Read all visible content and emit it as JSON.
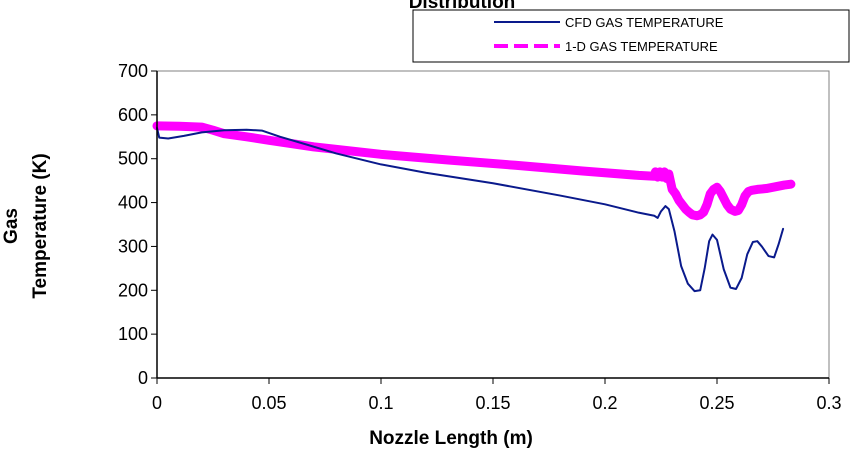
{
  "chart_data": {
    "type": "line",
    "title": "Distribution",
    "xlabel": "Nozzle Length (m)",
    "ylabel_line1": "Gas",
    "ylabel_line2": "Temperature (K)",
    "xlim": [
      0,
      0.3
    ],
    "ylim": [
      0,
      700
    ],
    "x_ticks": [
      0,
      0.05,
      0.1,
      0.15,
      0.2,
      0.25,
      0.3
    ],
    "x_tick_labels": [
      "0",
      "0.05",
      "0.1",
      "0.15",
      "0.2",
      "0.25",
      "0.3"
    ],
    "y_ticks": [
      0,
      100,
      200,
      300,
      400,
      500,
      600,
      700
    ],
    "y_tick_labels": [
      "0",
      "100",
      "200",
      "300",
      "400",
      "500",
      "600",
      "700"
    ],
    "grid": false,
    "legend_position": "top-right",
    "series": [
      {
        "name": "CFD GAS TEMPERATURE",
        "color": "#0a1a8c",
        "style": "solid",
        "points": [
          [
            0,
            570
          ],
          [
            0.001,
            548
          ],
          [
            0.005,
            546
          ],
          [
            0.012,
            552
          ],
          [
            0.02,
            560
          ],
          [
            0.03,
            565
          ],
          [
            0.04,
            566
          ],
          [
            0.047,
            564
          ],
          [
            0.055,
            550
          ],
          [
            0.065,
            535
          ],
          [
            0.08,
            512
          ],
          [
            0.1,
            487
          ],
          [
            0.12,
            468
          ],
          [
            0.15,
            444
          ],
          [
            0.18,
            416
          ],
          [
            0.2,
            396
          ],
          [
            0.215,
            377
          ],
          [
            0.222,
            370
          ],
          [
            0.2235,
            365
          ],
          [
            0.225,
            380
          ],
          [
            0.227,
            392
          ],
          [
            0.2285,
            385
          ],
          [
            0.231,
            335
          ],
          [
            0.234,
            255
          ],
          [
            0.237,
            215
          ],
          [
            0.24,
            198
          ],
          [
            0.2425,
            200
          ],
          [
            0.2445,
            250
          ],
          [
            0.2465,
            312
          ],
          [
            0.248,
            327
          ],
          [
            0.25,
            315
          ],
          [
            0.253,
            248
          ],
          [
            0.256,
            206
          ],
          [
            0.2585,
            203
          ],
          [
            0.261,
            228
          ],
          [
            0.2635,
            282
          ],
          [
            0.266,
            310
          ],
          [
            0.268,
            312
          ],
          [
            0.27,
            300
          ],
          [
            0.273,
            278
          ],
          [
            0.2755,
            275
          ],
          [
            0.2775,
            305
          ],
          [
            0.2795,
            340
          ]
        ]
      },
      {
        "name": "1-D GAS TEMPERATURE",
        "color": "#ff00ff",
        "style": "dashed",
        "points": [
          [
            0,
            575
          ],
          [
            0.01,
            574
          ],
          [
            0.02,
            572
          ],
          [
            0.025,
            565
          ],
          [
            0.03,
            557
          ],
          [
            0.04,
            550
          ],
          [
            0.05,
            542
          ],
          [
            0.07,
            527
          ],
          [
            0.1,
            510
          ],
          [
            0.13,
            497
          ],
          [
            0.16,
            485
          ],
          [
            0.19,
            472
          ],
          [
            0.215,
            462
          ],
          [
            0.222,
            460
          ],
          [
            0.2225,
            470
          ],
          [
            0.2235,
            458
          ],
          [
            0.2245,
            470
          ],
          [
            0.2255,
            458
          ],
          [
            0.2265,
            470
          ],
          [
            0.2275,
            455
          ],
          [
            0.2285,
            465
          ],
          [
            0.23,
            430
          ],
          [
            0.2315,
            420
          ],
          [
            0.233,
            405
          ],
          [
            0.2345,
            395
          ],
          [
            0.236,
            385
          ],
          [
            0.2375,
            378
          ],
          [
            0.239,
            372
          ],
          [
            0.241,
            370
          ],
          [
            0.2425,
            372
          ],
          [
            0.244,
            378
          ],
          [
            0.2455,
            395
          ],
          [
            0.247,
            420
          ],
          [
            0.2485,
            430
          ],
          [
            0.25,
            435
          ],
          [
            0.2515,
            425
          ],
          [
            0.253,
            410
          ],
          [
            0.2545,
            395
          ],
          [
            0.256,
            385
          ],
          [
            0.258,
            380
          ],
          [
            0.2595,
            382
          ],
          [
            0.261,
            395
          ],
          [
            0.2625,
            415
          ],
          [
            0.264,
            425
          ],
          [
            0.2655,
            428
          ],
          [
            0.268,
            430
          ],
          [
            0.272,
            432
          ],
          [
            0.276,
            436
          ],
          [
            0.28,
            440
          ],
          [
            0.283,
            442
          ]
        ]
      }
    ]
  }
}
